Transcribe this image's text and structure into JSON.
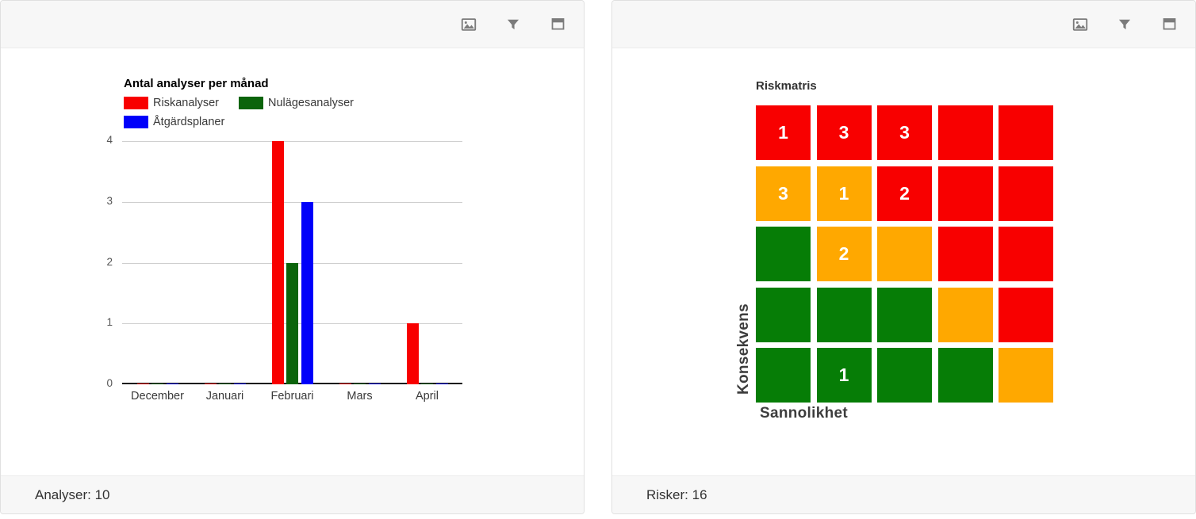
{
  "panels": [
    {
      "toolbar_icons": [
        "image-icon",
        "filter-icon",
        "maximize-icon"
      ],
      "footer": "Analyser: 10"
    },
    {
      "toolbar_icons": [
        "image-icon",
        "filter-icon",
        "maximize-icon"
      ],
      "footer": "Risker: 16"
    }
  ],
  "chart_data": [
    {
      "type": "bar",
      "title": "Antal analyser per månad",
      "categories": [
        "December",
        "Januari",
        "Februari",
        "Mars",
        "April"
      ],
      "series": [
        {
          "name": "Riskanalyser",
          "color": "#f80000",
          "values": [
            0,
            0,
            4,
            0,
            1
          ]
        },
        {
          "name": "Nulägesanalyser",
          "color": "#0b640b",
          "values": [
            0,
            0,
            2,
            0,
            0
          ]
        },
        {
          "name": "Åtgärdsplaner",
          "color": "#0000fa",
          "values": [
            0,
            0,
            3,
            0,
            0
          ]
        }
      ],
      "ylim": [
        0,
        4
      ],
      "yticks": [
        0,
        1,
        2,
        3,
        4
      ],
      "grid": true,
      "legend_position": "top-left"
    },
    {
      "type": "heatmap",
      "title": "Riskmatris",
      "xlabel": "Sannolikhet",
      "ylabel": "Konsekvens",
      "palette": {
        "red": "#f80000",
        "orange": "#ffa800",
        "green": "#067d06"
      },
      "rows": [
        {
          "cells": [
            {
              "color": "red",
              "label": "1"
            },
            {
              "color": "red",
              "label": "3"
            },
            {
              "color": "red",
              "label": "3"
            },
            {
              "color": "red",
              "label": ""
            },
            {
              "color": "red",
              "label": ""
            }
          ]
        },
        {
          "cells": [
            {
              "color": "orange",
              "label": "3"
            },
            {
              "color": "orange",
              "label": "1"
            },
            {
              "color": "red",
              "label": "2"
            },
            {
              "color": "red",
              "label": ""
            },
            {
              "color": "red",
              "label": ""
            }
          ]
        },
        {
          "cells": [
            {
              "color": "green",
              "label": ""
            },
            {
              "color": "orange",
              "label": "2"
            },
            {
              "color": "orange",
              "label": ""
            },
            {
              "color": "red",
              "label": ""
            },
            {
              "color": "red",
              "label": ""
            }
          ]
        },
        {
          "cells": [
            {
              "color": "green",
              "label": ""
            },
            {
              "color": "green",
              "label": ""
            },
            {
              "color": "green",
              "label": ""
            },
            {
              "color": "orange",
              "label": ""
            },
            {
              "color": "red",
              "label": ""
            }
          ]
        },
        {
          "cells": [
            {
              "color": "green",
              "label": ""
            },
            {
              "color": "green",
              "label": "1"
            },
            {
              "color": "green",
              "label": ""
            },
            {
              "color": "green",
              "label": ""
            },
            {
              "color": "orange",
              "label": ""
            }
          ]
        }
      ]
    }
  ]
}
